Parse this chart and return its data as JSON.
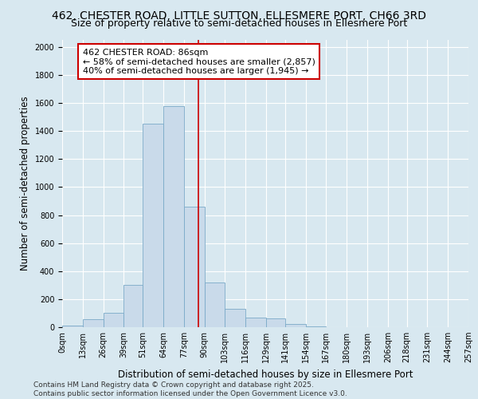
{
  "title": "462, CHESTER ROAD, LITTLE SUTTON, ELLESMERE PORT, CH66 3RD",
  "subtitle": "Size of property relative to semi-detached houses in Ellesmere Port",
  "xlabel": "Distribution of semi-detached houses by size in Ellesmere Port",
  "ylabel": "Number of semi-detached properties",
  "property_size": 86,
  "bin_edges": [
    0,
    13,
    26,
    39,
    51,
    64,
    77,
    90,
    103,
    116,
    129,
    141,
    154,
    167,
    180,
    193,
    206,
    218,
    231,
    244,
    257
  ],
  "bin_labels": [
    "0sqm",
    "13sqm",
    "26sqm",
    "39sqm",
    "51sqm",
    "64sqm",
    "77sqm",
    "90sqm",
    "103sqm",
    "116sqm",
    "129sqm",
    "141sqm",
    "154sqm",
    "167sqm",
    "180sqm",
    "193sqm",
    "206sqm",
    "218sqm",
    "231sqm",
    "244sqm",
    "257sqm"
  ],
  "bar_heights": [
    10,
    55,
    100,
    300,
    1450,
    1580,
    860,
    320,
    130,
    70,
    60,
    20,
    5,
    0,
    0,
    0,
    0,
    0,
    0,
    0
  ],
  "bar_color": "#c9daea",
  "bar_edge_color": "#7aaac8",
  "red_line_color": "#cc0000",
  "annotation_text": "462 CHESTER ROAD: 86sqm\n← 58% of semi-detached houses are smaller (2,857)\n40% of semi-detached houses are larger (1,945) →",
  "annotation_box_color": "#ffffff",
  "annotation_box_edge_color": "#cc0000",
  "ylim": [
    0,
    2050
  ],
  "yticks": [
    0,
    200,
    400,
    600,
    800,
    1000,
    1200,
    1400,
    1600,
    1800,
    2000
  ],
  "background_color": "#d8e8f0",
  "plot_background_color": "#d8e8f0",
  "grid_color": "#ffffff",
  "footer_text": "Contains HM Land Registry data © Crown copyright and database right 2025.\nContains public sector information licensed under the Open Government Licence v3.0.",
  "title_fontsize": 10,
  "subtitle_fontsize": 9,
  "axis_label_fontsize": 8.5,
  "tick_fontsize": 7,
  "annotation_fontsize": 8,
  "footer_fontsize": 6.5
}
